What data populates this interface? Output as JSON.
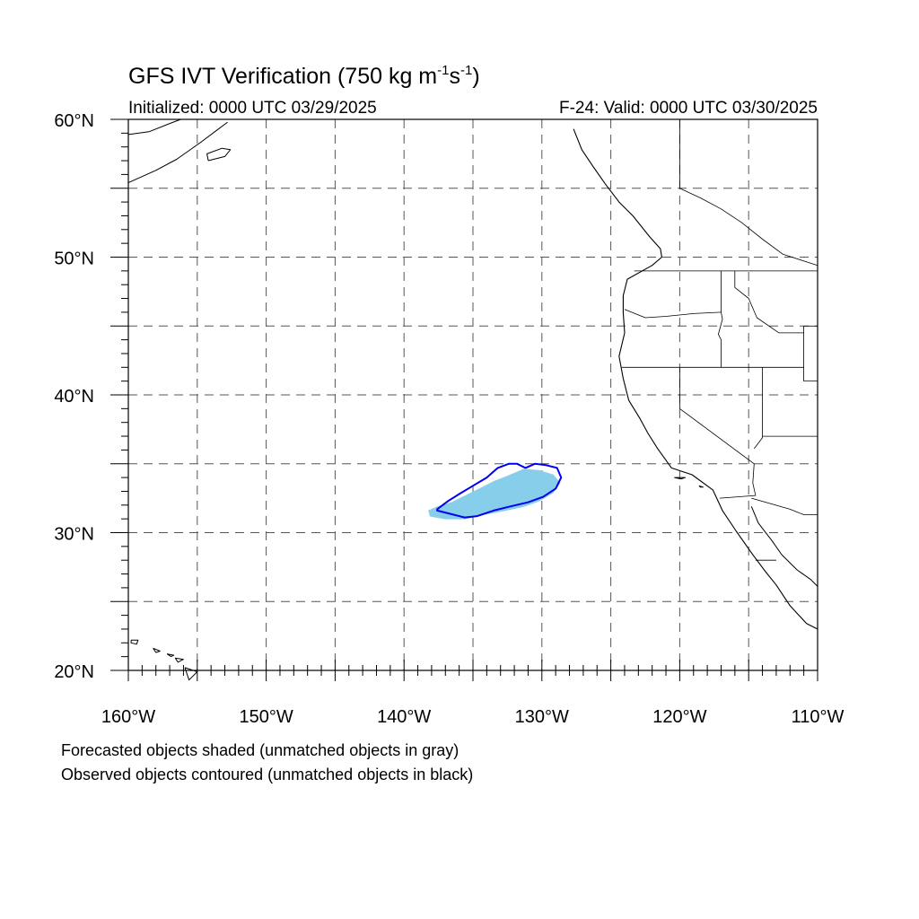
{
  "title": {
    "main_prefix": "GFS IVT Verification (750 kg m",
    "sup1": "-1",
    "mid": "s",
    "sup2": "-1",
    "suffix": ")"
  },
  "initialized_label": "Initialized: 0000 UTC 03/29/2025",
  "valid_label": "F-24: Valid: 0000 UTC 03/30/2025",
  "map": {
    "lon_range": [
      -160,
      -110
    ],
    "lat_range": [
      20,
      60
    ],
    "lat_ticks": [
      {
        "value": 60,
        "label": "60°N"
      },
      {
        "value": 50,
        "label": "50°N"
      },
      {
        "value": 40,
        "label": "40°N"
      },
      {
        "value": 30,
        "label": "30°N"
      },
      {
        "value": 20,
        "label": "20°N"
      }
    ],
    "lon_ticks": [
      {
        "value": -160,
        "label": "160°W"
      },
      {
        "value": -150,
        "label": "150°W"
      },
      {
        "value": -140,
        "label": "140°W"
      },
      {
        "value": -130,
        "label": "130°W"
      },
      {
        "value": -120,
        "label": "120°W"
      },
      {
        "value": -110,
        "label": "110°W"
      }
    ],
    "grid_lons": [
      -155,
      -150,
      -145,
      -140,
      -135,
      -130,
      -125,
      -120,
      -115
    ],
    "grid_lats": [
      25,
      30,
      35,
      40,
      45,
      50,
      55
    ],
    "forecast_object_color": "#87ceeb",
    "observed_contour_color": "#0000ee",
    "forecast_object": [
      [
        -138.1,
        31.2
      ],
      [
        -138.2,
        31.6
      ],
      [
        -137.5,
        31.9
      ],
      [
        -136.5,
        32.2
      ],
      [
        -135.5,
        32.7
      ],
      [
        -134.5,
        33.2
      ],
      [
        -133.5,
        33.7
      ],
      [
        -132.5,
        34.1
      ],
      [
        -131.3,
        34.6
      ],
      [
        -130.2,
        34.5
      ],
      [
        -129.2,
        34.2
      ],
      [
        -128.7,
        33.6
      ],
      [
        -129.2,
        32.9
      ],
      [
        -130.2,
        32.3
      ],
      [
        -131.3,
        31.9
      ],
      [
        -132.7,
        31.6
      ],
      [
        -134.3,
        31.3
      ],
      [
        -135.6,
        31.0
      ],
      [
        -137.0,
        31.0
      ]
    ],
    "observed_object": [
      [
        -137.6,
        31.7
      ],
      [
        -136.8,
        32.3
      ],
      [
        -136.0,
        32.8
      ],
      [
        -135.0,
        33.4
      ],
      [
        -134.0,
        34.0
      ],
      [
        -133.2,
        34.7
      ],
      [
        -132.4,
        35.0
      ],
      [
        -131.8,
        35.0
      ],
      [
        -131.2,
        34.7
      ],
      [
        -130.5,
        35.0
      ],
      [
        -129.7,
        34.9
      ],
      [
        -128.9,
        34.7
      ],
      [
        -128.6,
        34.0
      ],
      [
        -129.0,
        33.2
      ],
      [
        -129.9,
        32.6
      ],
      [
        -131.0,
        32.2
      ],
      [
        -132.3,
        31.9
      ],
      [
        -133.5,
        31.6
      ],
      [
        -134.7,
        31.2
      ],
      [
        -135.6,
        31.1
      ],
      [
        -136.4,
        31.3
      ],
      [
        -137.6,
        31.6
      ]
    ],
    "coastline": [
      [
        -127.7,
        59.3
      ],
      [
        -127.1,
        57.8
      ],
      [
        -126.3,
        56.6
      ],
      [
        -125.4,
        55.3
      ],
      [
        -124.4,
        54.0
      ],
      [
        -123.4,
        53.0
      ],
      [
        -122.2,
        51.5
      ],
      [
        -121.4,
        50.6
      ],
      [
        -121.3,
        50.0
      ],
      [
        -122.0,
        49.4
      ],
      [
        -123.8,
        48.4
      ],
      [
        -124.1,
        47.2
      ],
      [
        -124.1,
        46.0
      ],
      [
        -124.0,
        44.5
      ],
      [
        -124.4,
        42.8
      ],
      [
        -124.1,
        41.2
      ],
      [
        -123.7,
        39.6
      ],
      [
        -122.9,
        38.3
      ],
      [
        -122.3,
        37.2
      ],
      [
        -121.6,
        36.1
      ],
      [
        -120.6,
        34.7
      ],
      [
        -119.1,
        34.2
      ],
      [
        -117.6,
        33.1
      ],
      [
        -116.9,
        31.6
      ],
      [
        -115.9,
        30.1
      ],
      [
        -114.7,
        28.4
      ],
      [
        -113.8,
        27.2
      ],
      [
        -113.0,
        26.2
      ],
      [
        -112.0,
        24.7
      ],
      [
        -110.8,
        23.4
      ],
      [
        -110.0,
        23.0
      ]
    ],
    "gulf_coast": [
      [
        -114.8,
        31.9
      ],
      [
        -114.3,
        30.7
      ],
      [
        -113.3,
        29.4
      ],
      [
        -112.6,
        28.4
      ],
      [
        -111.5,
        27.3
      ],
      [
        -110.5,
        26.6
      ],
      [
        -110.0,
        26.1
      ]
    ],
    "alaska_coast": [
      [
        -160.0,
        55.4
      ],
      [
        -158.0,
        56.3
      ],
      [
        -156.5,
        57.1
      ],
      [
        -154.8,
        58.3
      ],
      [
        -153.6,
        59.2
      ],
      [
        -152.8,
        59.8
      ]
    ],
    "alaska_coast_north": [
      [
        -160.0,
        58.9
      ],
      [
        -158.5,
        59.1
      ],
      [
        -157.0,
        59.7
      ],
      [
        -156.2,
        60.0
      ]
    ],
    "kodiak": [
      [
        -154.2,
        57.0
      ],
      [
        -153.0,
        57.3
      ],
      [
        -152.6,
        57.8
      ],
      [
        -153.2,
        57.9
      ],
      [
        -154.3,
        57.5
      ],
      [
        -154.2,
        57.0
      ]
    ],
    "hawaii": [
      [
        [
          -159.8,
          22.2
        ],
        [
          -159.3,
          22.2
        ],
        [
          -159.4,
          21.9
        ],
        [
          -159.8,
          22.0
        ],
        [
          -159.8,
          22.2
        ]
      ],
      [
        [
          -158.2,
          21.6
        ],
        [
          -157.7,
          21.4
        ],
        [
          -158.0,
          21.3
        ],
        [
          -158.2,
          21.6
        ]
      ],
      [
        [
          -157.2,
          21.2
        ],
        [
          -156.7,
          21.1
        ],
        [
          -156.9,
          21.0
        ],
        [
          -157.2,
          21.2
        ]
      ],
      [
        [
          -156.6,
          20.9
        ],
        [
          -156.0,
          20.8
        ],
        [
          -156.4,
          20.6
        ],
        [
          -156.6,
          20.9
        ]
      ],
      [
        [
          -155.9,
          20.2
        ],
        [
          -155.0,
          19.9
        ],
        [
          -155.6,
          19.3
        ],
        [
          -155.9,
          20.2
        ]
      ]
    ],
    "channel_islands": [
      [
        [
          -120.4,
          34.0
        ],
        [
          -119.6,
          34.0
        ],
        [
          -119.9,
          33.9
        ],
        [
          -120.4,
          34.0
        ]
      ],
      [
        [
          -118.6,
          33.4
        ],
        [
          -118.3,
          33.3
        ],
        [
          -118.5,
          33.3
        ],
        [
          -118.6,
          33.4
        ]
      ]
    ],
    "borders": [
      [
        [
          -123.3,
          49.0
        ],
        [
          -110.0,
          49.0
        ]
      ],
      [
        [
          -120.0,
          60.0
        ],
        [
          -120.0,
          55.0
        ],
        [
          -118.5,
          54.3
        ],
        [
          -117.0,
          53.5
        ],
        [
          -115.5,
          52.5
        ],
        [
          -114.0,
          51.3
        ],
        [
          -112.5,
          50.2
        ],
        [
          -110.0,
          49.4
        ]
      ],
      [
        [
          -124.0,
          46.2
        ],
        [
          -122.5,
          45.6
        ],
        [
          -121.0,
          45.7
        ],
        [
          -119.0,
          45.9
        ],
        [
          -117.0,
          46.0
        ]
      ],
      [
        [
          -124.2,
          42.0
        ],
        [
          -111.0,
          42.0
        ]
      ],
      [
        [
          -117.0,
          49.0
        ],
        [
          -117.0,
          46.0
        ],
        [
          -116.9,
          45.5
        ],
        [
          -117.2,
          44.4
        ],
        [
          -117.0,
          44.0
        ],
        [
          -117.0,
          42.0
        ]
      ],
      [
        [
          -116.0,
          49.0
        ],
        [
          -116.0,
          47.8
        ],
        [
          -115.0,
          47.0
        ],
        [
          -114.4,
          45.6
        ],
        [
          -112.8,
          44.5
        ],
        [
          -111.0,
          44.5
        ]
      ],
      [
        [
          -111.0,
          45.0
        ],
        [
          -110.0,
          45.0
        ]
      ],
      [
        [
          -111.0,
          45.0
        ],
        [
          -111.0,
          41.0
        ],
        [
          -110.0,
          41.0
        ]
      ],
      [
        [
          -120.0,
          42.0
        ],
        [
          -120.0,
          39.0
        ],
        [
          -114.6,
          35.0
        ]
      ],
      [
        [
          -114.0,
          42.0
        ],
        [
          -114.0,
          36.9
        ],
        [
          -114.6,
          36.1
        ]
      ],
      [
        [
          -114.0,
          37.0
        ],
        [
          -110.0,
          37.0
        ]
      ],
      [
        [
          -114.6,
          35.0
        ],
        [
          -114.7,
          33.6
        ],
        [
          -114.5,
          32.7
        ],
        [
          -117.1,
          32.5
        ]
      ],
      [
        [
          -114.8,
          32.5
        ],
        [
          -112.0,
          31.7
        ],
        [
          -111.0,
          31.3
        ],
        [
          -110.0,
          31.3
        ]
      ],
      [
        [
          -114.5,
          28.0
        ],
        [
          -113.0,
          28.0
        ]
      ]
    ]
  }
}
